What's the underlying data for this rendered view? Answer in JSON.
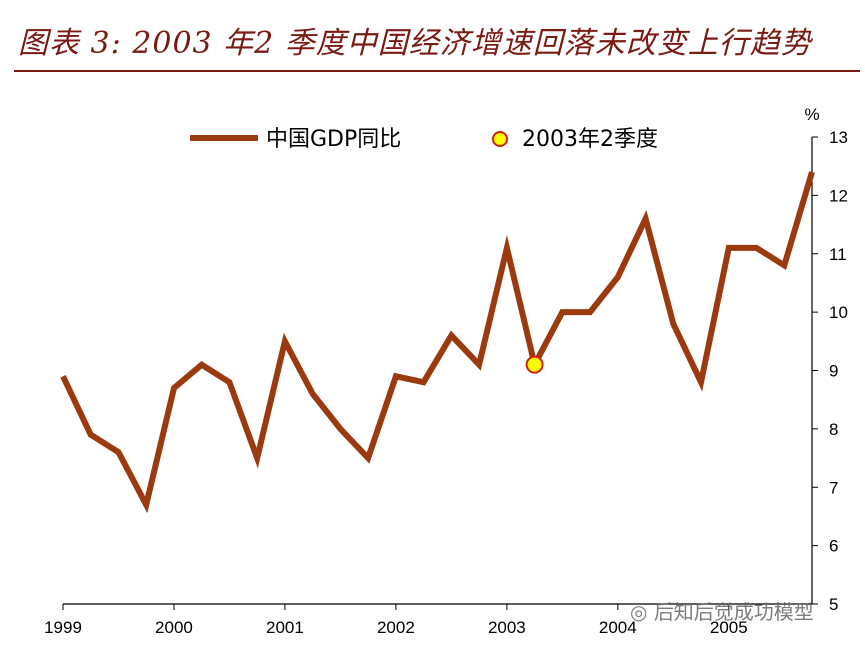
{
  "header": {
    "title": "图表 3: 2003 年2 季度中国经济增速回落未改变上行趋势"
  },
  "colors": {
    "series": "#9b3a0f",
    "marker_fill": "#ffff00",
    "marker_stroke": "#d02010",
    "title": "#7a1a12"
  },
  "watermark": {
    "text": "后知后觉成功模型",
    "icon": "wechat-icon"
  },
  "chart_data": {
    "type": "line",
    "title": "",
    "xlabel": "",
    "ylabel": "%",
    "ylim": [
      5,
      13
    ],
    "y_ticks": [
      "5",
      "6",
      "7",
      "8",
      "9",
      "10",
      "11",
      "12",
      "13"
    ],
    "x_tick_labels": [
      "1999",
      "2000",
      "2001",
      "2002",
      "2003",
      "2004",
      "2005"
    ],
    "legend": {
      "placement": "top",
      "entries": [
        "中国GDP同比",
        "2003年2季度"
      ]
    },
    "x": [
      "1999Q1",
      "1999Q2",
      "1999Q3",
      "1999Q4",
      "2000Q1",
      "2000Q2",
      "2000Q3",
      "2000Q4",
      "2001Q1",
      "2001Q2",
      "2001Q3",
      "2001Q4",
      "2002Q1",
      "2002Q2",
      "2002Q3",
      "2002Q4",
      "2003Q1",
      "2003Q2",
      "2003Q3",
      "2003Q4",
      "2004Q1",
      "2004Q2",
      "2004Q3",
      "2004Q4",
      "2005Q1",
      "2005Q2",
      "2005Q3",
      "2005Q4"
    ],
    "series": [
      {
        "name": "中国GDP同比",
        "values": [
          8.9,
          7.9,
          7.6,
          6.7,
          8.7,
          9.1,
          8.8,
          7.5,
          9.5,
          8.6,
          8.0,
          7.5,
          8.9,
          8.8,
          9.6,
          9.1,
          11.1,
          9.1,
          10.0,
          10.0,
          10.6,
          11.6,
          9.8,
          8.8,
          11.1,
          11.1,
          10.8,
          12.4
        ]
      }
    ],
    "highlight": {
      "name": "2003年2季度",
      "x": "2003Q2",
      "y": 9.1
    }
  }
}
